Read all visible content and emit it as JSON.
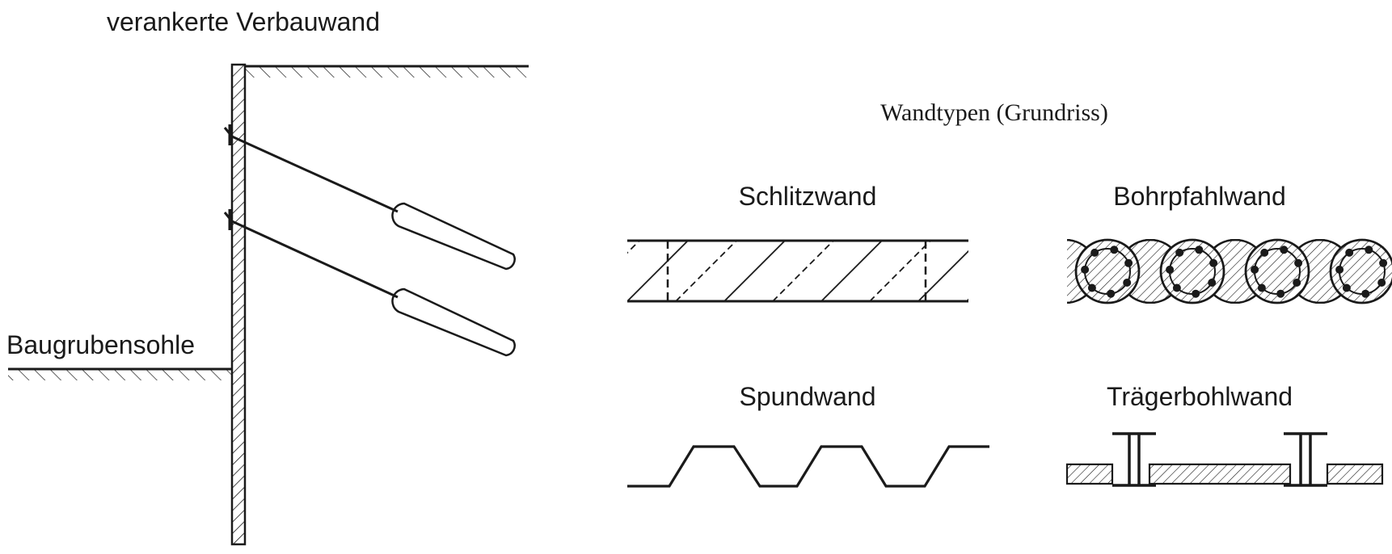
{
  "left": {
    "title": "verankerte Verbauwand",
    "excavation_label": "Baugrubensohle"
  },
  "right": {
    "title": "Wandtypen (Grundriss)",
    "types": {
      "slurry": "Schlitzwand",
      "bored_pile": "Bohrpfahlwand",
      "sheet_pile": "Spundwand",
      "soldier_pile": "Trägerbohlwand"
    }
  },
  "colors": {
    "ink": "#1a1a1a",
    "background": "#ffffff"
  }
}
